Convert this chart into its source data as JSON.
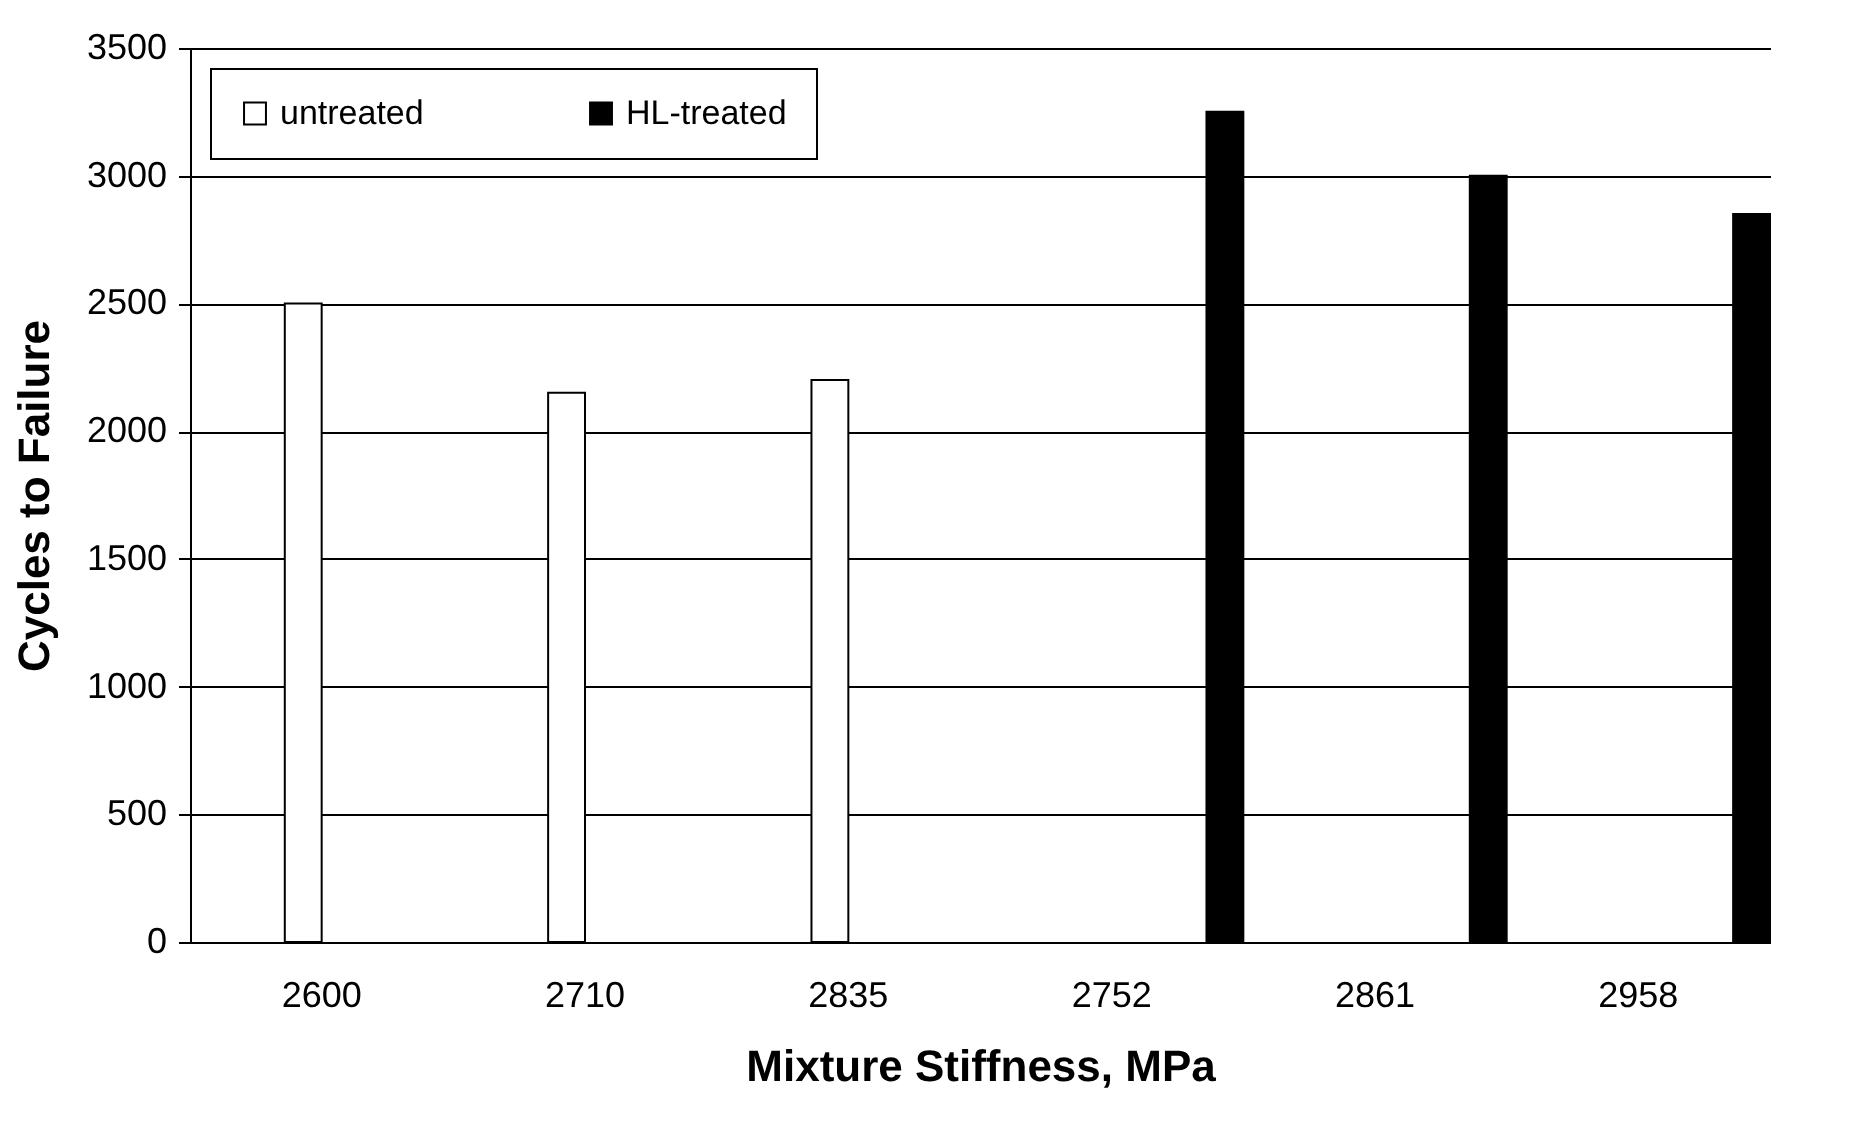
{
  "chart_data": {
    "type": "bar",
    "xlabel": "Mixture Stiffness, MPa",
    "ylabel": "Cycles to Failure",
    "categories": [
      "2600",
      "2710",
      "2835",
      "2752",
      "2861",
      "2958"
    ],
    "series": [
      {
        "name": "untreated",
        "color": "#ffffff",
        "values": [
          2500,
          2150,
          2200,
          null,
          null,
          null
        ]
      },
      {
        "name": "HL-treated",
        "color": "#000000",
        "values": [
          null,
          null,
          null,
          3250,
          3000,
          2850
        ]
      }
    ],
    "ylim": [
      0,
      3500
    ],
    "yticks": [
      0,
      500,
      1000,
      1500,
      2000,
      2500,
      3000,
      3500
    ],
    "grid": "y",
    "legend": "top left"
  }
}
